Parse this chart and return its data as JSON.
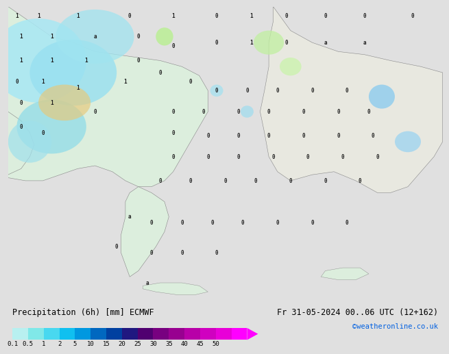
{
  "title_left": "Precipitation (6h) [mm] ECMWF",
  "title_right": "Fr 31-05-2024 00..06 UTC (12+162)",
  "credit": "©weatheronline.co.uk",
  "colorbar_labels": [
    "0.1",
    "0.5",
    "1",
    "2",
    "5",
    "10",
    "15",
    "20",
    "25",
    "30",
    "35",
    "40",
    "45",
    "50"
  ],
  "colorbar_colors": [
    "#b8f0f0",
    "#80e8e8",
    "#48d8f0",
    "#10c0f0",
    "#0098e0",
    "#0068c0",
    "#0040a0",
    "#201880",
    "#500070",
    "#780080",
    "#980090",
    "#b800a8",
    "#d000c0",
    "#e800d8",
    "#ff00ff"
  ],
  "bg_color": "#e0e0e0",
  "sea_color": "#c8ecf8",
  "land_color_balkans": "#dceedd",
  "land_color_turkey": "#e8e8e0",
  "land_color_italy": "#dceedd",
  "precip_cyan_light": "#a0e8f0",
  "precip_cyan": "#70d8f0",
  "precip_cyan_dark": "#48c8e8",
  "precip_green_light": "#c0f0a0",
  "precip_orange": "#f0c880",
  "border_color": "#888888",
  "number_color": "#202020",
  "bottom_bg": "#d8d8d8",
  "credit_color": "#0060e0",
  "title_fontsize": 8.5,
  "credit_fontsize": 7.5,
  "label_fontsize": 6.5
}
